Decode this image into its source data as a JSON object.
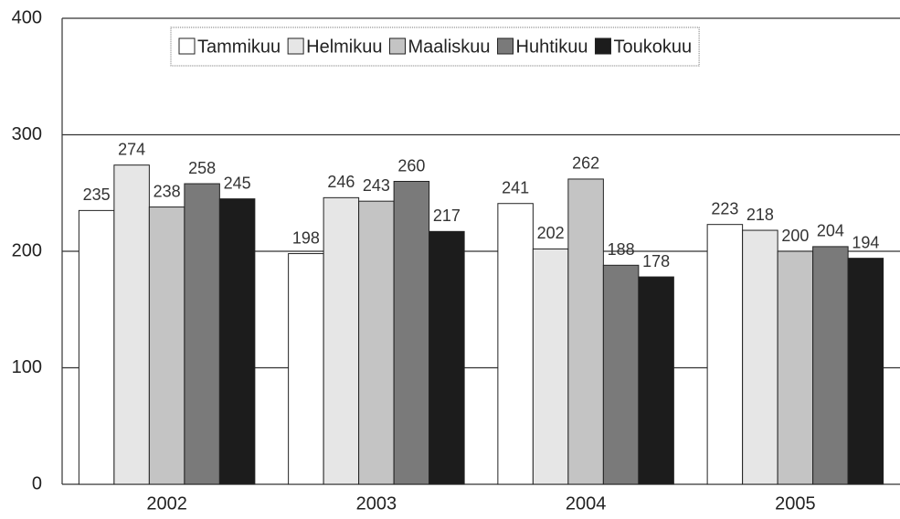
{
  "chart_data": {
    "type": "bar",
    "categories": [
      "2002",
      "2003",
      "2004",
      "2005"
    ],
    "series": [
      {
        "name": "Tammikuu",
        "color": "#ffffff",
        "values": [
          235,
          198,
          241,
          223
        ]
      },
      {
        "name": "Helmikuu",
        "color": "#e6e6e6",
        "values": [
          274,
          246,
          202,
          218
        ]
      },
      {
        "name": "Maaliskuu",
        "color": "#c4c4c4",
        "values": [
          238,
          243,
          262,
          200
        ]
      },
      {
        "name": "Huhtikuu",
        "color": "#7a7a7a",
        "values": [
          258,
          260,
          188,
          204
        ]
      },
      {
        "name": "Toukokuu",
        "color": "#1c1c1c",
        "values": [
          245,
          217,
          178,
          194
        ]
      }
    ],
    "ylim": [
      0,
      400
    ],
    "yticks": [
      0,
      100,
      200,
      300,
      400
    ],
    "grid": true,
    "legend": "top"
  }
}
